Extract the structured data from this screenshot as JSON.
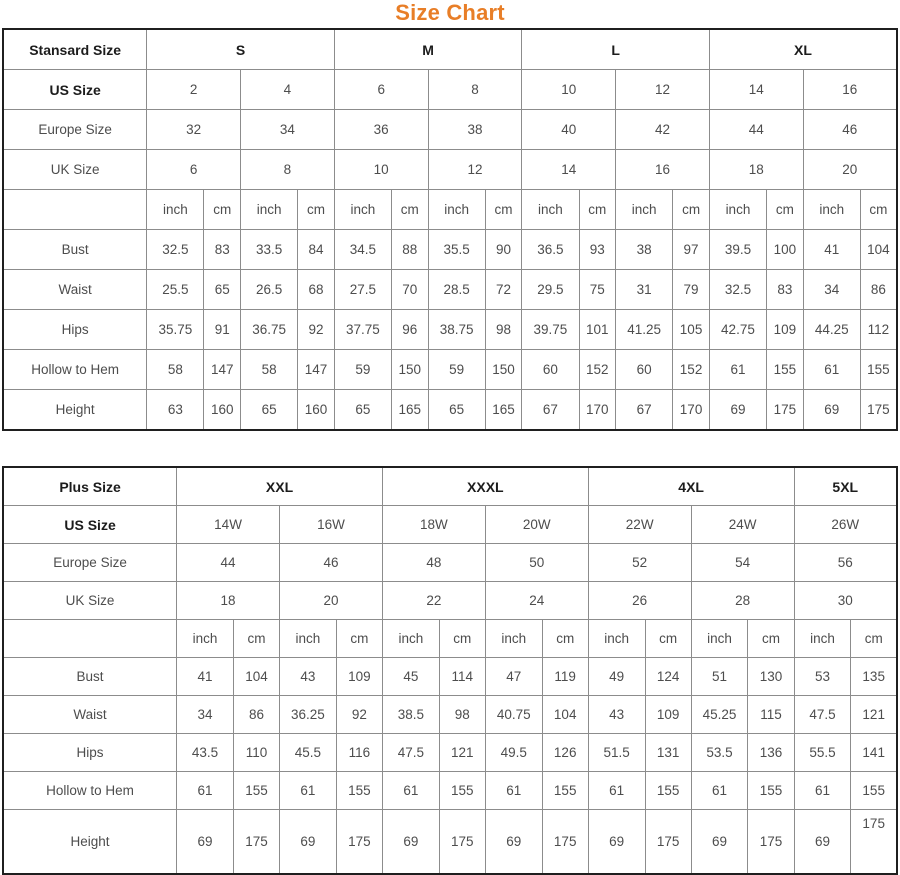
{
  "title": "Size Chart",
  "colors": {
    "title": "#e87e27",
    "outer_border": "#1f1f1f",
    "inner_border": "#8c8c8c",
    "header_text": "#1c1c1c",
    "body_text": "#4d4d4d"
  },
  "unit_labels": [
    "inch",
    "cm"
  ],
  "tables": [
    {
      "id": "standard",
      "corner_label": "Stansard Size",
      "size_groups": [
        {
          "label": "S",
          "span": 2
        },
        {
          "label": "M",
          "span": 2
        },
        {
          "label": "L",
          "span": 2
        },
        {
          "label": "XL",
          "span": 2
        }
      ],
      "size_rows": [
        {
          "label": "US Size",
          "bold": true,
          "values": [
            "2",
            "4",
            "6",
            "8",
            "10",
            "12",
            "14",
            "16"
          ]
        },
        {
          "label": "Europe Size",
          "bold": false,
          "values": [
            "32",
            "34",
            "36",
            "38",
            "40",
            "42",
            "44",
            "46"
          ]
        },
        {
          "label": "UK Size",
          "bold": false,
          "values": [
            "6",
            "8",
            "10",
            "12",
            "14",
            "16",
            "18",
            "20"
          ]
        }
      ],
      "measure_rows": [
        {
          "label": "Bust",
          "pairs": [
            [
              "32.5",
              "83"
            ],
            [
              "33.5",
              "84"
            ],
            [
              "34.5",
              "88"
            ],
            [
              "35.5",
              "90"
            ],
            [
              "36.5",
              "93"
            ],
            [
              "38",
              "97"
            ],
            [
              "39.5",
              "100"
            ],
            [
              "41",
              "104"
            ]
          ]
        },
        {
          "label": "Waist",
          "pairs": [
            [
              "25.5",
              "65"
            ],
            [
              "26.5",
              "68"
            ],
            [
              "27.5",
              "70"
            ],
            [
              "28.5",
              "72"
            ],
            [
              "29.5",
              "75"
            ],
            [
              "31",
              "79"
            ],
            [
              "32.5",
              "83"
            ],
            [
              "34",
              "86"
            ]
          ]
        },
        {
          "label": "Hips",
          "pairs": [
            [
              "35.75",
              "91"
            ],
            [
              "36.75",
              "92"
            ],
            [
              "37.75",
              "96"
            ],
            [
              "38.75",
              "98"
            ],
            [
              "39.75",
              "101"
            ],
            [
              "41.25",
              "105"
            ],
            [
              "42.75",
              "109"
            ],
            [
              "44.25",
              "112"
            ]
          ]
        },
        {
          "label": "Hollow to Hem",
          "pairs": [
            [
              "58",
              "147"
            ],
            [
              "58",
              "147"
            ],
            [
              "59",
              "150"
            ],
            [
              "59",
              "150"
            ],
            [
              "60",
              "152"
            ],
            [
              "60",
              "152"
            ],
            [
              "61",
              "155"
            ],
            [
              "61",
              "155"
            ]
          ]
        },
        {
          "label": "Height",
          "pairs": [
            [
              "63",
              "160"
            ],
            [
              "65",
              "160"
            ],
            [
              "65",
              "165"
            ],
            [
              "65",
              "165"
            ],
            [
              "67",
              "170"
            ],
            [
              "67",
              "170"
            ],
            [
              "69",
              "175"
            ],
            [
              "69",
              "175"
            ]
          ]
        }
      ],
      "col_widths": {
        "label": "16.1%",
        "inch": "6.4%",
        "cm": "4.1%"
      }
    },
    {
      "id": "plus",
      "corner_label": "Plus Size",
      "size_groups": [
        {
          "label": "XXL",
          "span": 2
        },
        {
          "label": "XXXL",
          "span": 2
        },
        {
          "label": "4XL",
          "span": 2
        },
        {
          "label": "5XL",
          "span": 1
        }
      ],
      "size_rows": [
        {
          "label": "US Size",
          "bold": true,
          "values": [
            "14W",
            "16W",
            "18W",
            "20W",
            "22W",
            "24W",
            "26W"
          ]
        },
        {
          "label": "Europe Size",
          "bold": false,
          "values": [
            "44",
            "46",
            "48",
            "50",
            "52",
            "54",
            "56"
          ]
        },
        {
          "label": "UK Size",
          "bold": false,
          "values": [
            "18",
            "20",
            "22",
            "24",
            "26",
            "28",
            "30"
          ]
        }
      ],
      "measure_rows": [
        {
          "label": "Bust",
          "pairs": [
            [
              "41",
              "104"
            ],
            [
              "43",
              "109"
            ],
            [
              "45",
              "114"
            ],
            [
              "47",
              "119"
            ],
            [
              "49",
              "124"
            ],
            [
              "51",
              "130"
            ],
            [
              "53",
              "135"
            ]
          ]
        },
        {
          "label": "Waist",
          "pairs": [
            [
              "34",
              "86"
            ],
            [
              "36.25",
              "92"
            ],
            [
              "38.5",
              "98"
            ],
            [
              "40.75",
              "104"
            ],
            [
              "43",
              "109"
            ],
            [
              "45.25",
              "115"
            ],
            [
              "47.5",
              "121"
            ]
          ]
        },
        {
          "label": "Hips",
          "pairs": [
            [
              "43.5",
              "110"
            ],
            [
              "45.5",
              "116"
            ],
            [
              "47.5",
              "121"
            ],
            [
              "49.5",
              "126"
            ],
            [
              "51.5",
              "131"
            ],
            [
              "53.5",
              "136"
            ],
            [
              "55.5",
              "141"
            ]
          ]
        },
        {
          "label": "Hollow to Hem",
          "pairs": [
            [
              "61",
              "155"
            ],
            [
              "61",
              "155"
            ],
            [
              "61",
              "155"
            ],
            [
              "61",
              "155"
            ],
            [
              "61",
              "155"
            ],
            [
              "61",
              "155"
            ],
            [
              "61",
              "155"
            ]
          ]
        },
        {
          "label": "Height",
          "tall": true,
          "last_cell_top": true,
          "pairs": [
            [
              "69",
              "175"
            ],
            [
              "69",
              "175"
            ],
            [
              "69",
              "175"
            ],
            [
              "69",
              "175"
            ],
            [
              "69",
              "175"
            ],
            [
              "69",
              "175"
            ],
            [
              "69",
              "175"
            ]
          ]
        }
      ],
      "col_widths": {
        "label": "19.4%",
        "inch": "6.35%",
        "cm": "5.15%"
      }
    }
  ]
}
